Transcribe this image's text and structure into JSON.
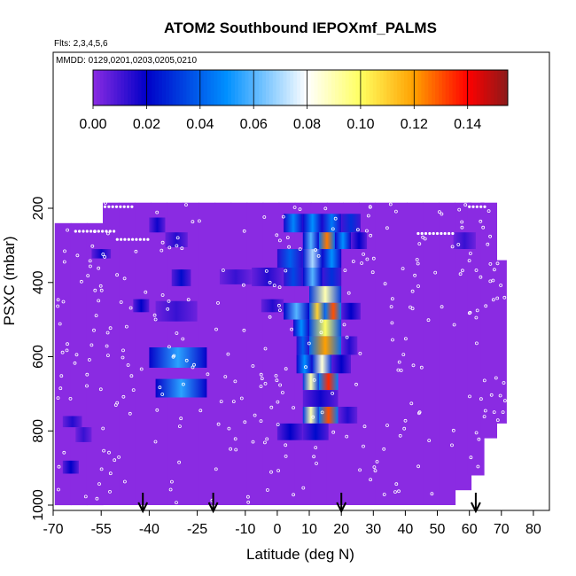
{
  "chart_data": {
    "type": "heatmap",
    "title": "ATOM2 Southbound IEPOXmf_PALMS",
    "flights_label": "Flts: 2,3,4,5,6",
    "dates_label": "MMDD: 0129,0201,0203,0205,0210",
    "xlabel": "Latitude (deg N)",
    "ylabel": "PSXC (mbar)",
    "xlim": [
      -70,
      85
    ],
    "ylim": [
      1000,
      0
    ],
    "x_ticks": [
      -70,
      -55,
      -40,
      -25,
      -10,
      0,
      10,
      20,
      30,
      40,
      50,
      60,
      70,
      80
    ],
    "x_tick_labels": [
      "-70",
      "-55",
      "-40",
      "-25",
      "-10",
      "0",
      "10",
      "20",
      "30",
      "40",
      "50",
      "60",
      "70",
      "80"
    ],
    "y_ticks": [
      200,
      400,
      600,
      800,
      1000
    ],
    "y_tick_labels": [
      "200",
      "400",
      "600",
      "800",
      "1000"
    ],
    "colorbar": {
      "min": 0.0,
      "max": 0.155,
      "ticks": [
        0.0,
        0.02,
        0.04,
        0.06,
        0.08,
        0.1,
        0.12,
        0.14
      ],
      "tick_labels": [
        "0.00",
        "0.02",
        "0.04",
        "0.06",
        "0.08",
        "0.10",
        "0.12",
        "0.14"
      ],
      "colors": [
        "#8a2be2",
        "#0000c8",
        "#0090ff",
        "#ffffff",
        "#ffff60",
        "#ffa000",
        "#ff0000",
        "#8b1a1a"
      ]
    },
    "background_color": "#8a2be2",
    "arrow_latitudes": [
      -42,
      -20,
      20,
      62
    ],
    "columns": [
      {
        "lat": -67,
        "p_top": 240,
        "p_bot": 1000
      },
      {
        "lat": -62,
        "p_top": 240,
        "p_bot": 1000
      },
      {
        "lat": -57,
        "p_top": 240,
        "p_bot": 1000
      },
      {
        "lat": -52,
        "p_top": 185,
        "p_bot": 1000
      },
      {
        "lat": -47,
        "p_top": 185,
        "p_bot": 1000
      },
      {
        "lat": -42,
        "p_top": 185,
        "p_bot": 1000
      },
      {
        "lat": -37,
        "p_top": 185,
        "p_bot": 1000
      },
      {
        "lat": -32,
        "p_top": 185,
        "p_bot": 1000
      },
      {
        "lat": -27,
        "p_top": 185,
        "p_bot": 1000
      },
      {
        "lat": -22,
        "p_top": 185,
        "p_bot": 1000
      },
      {
        "lat": -17,
        "p_top": 185,
        "p_bot": 1000
      },
      {
        "lat": -12,
        "p_top": 185,
        "p_bot": 1000
      },
      {
        "lat": -7,
        "p_top": 185,
        "p_bot": 1000
      },
      {
        "lat": -2,
        "p_top": 185,
        "p_bot": 1000
      },
      {
        "lat": 3,
        "p_top": 185,
        "p_bot": 1000
      },
      {
        "lat": 8,
        "p_top": 185,
        "p_bot": 1000
      },
      {
        "lat": 13,
        "p_top": 185,
        "p_bot": 1000
      },
      {
        "lat": 18,
        "p_top": 185,
        "p_bot": 1000
      },
      {
        "lat": 23,
        "p_top": 185,
        "p_bot": 1000
      },
      {
        "lat": 28,
        "p_top": 185,
        "p_bot": 1000
      },
      {
        "lat": 33,
        "p_top": 185,
        "p_bot": 1000
      },
      {
        "lat": 38,
        "p_top": 185,
        "p_bot": 1000
      },
      {
        "lat": 43,
        "p_top": 185,
        "p_bot": 1000
      },
      {
        "lat": 48,
        "p_top": 185,
        "p_bot": 1000
      },
      {
        "lat": 53,
        "p_top": 185,
        "p_bot": 1000
      },
      {
        "lat": 58,
        "p_top": 185,
        "p_bot": 960
      },
      {
        "lat": 62,
        "p_top": 185,
        "p_bot": 920
      },
      {
        "lat": 66,
        "p_top": 185,
        "p_bot": 820
      },
      {
        "lat": 69,
        "p_top": 340,
        "p_bot": 780
      }
    ],
    "cells": [
      {
        "lat0": -67,
        "lat1": -62,
        "p0": 880,
        "p1": 915,
        "value": 0.02
      },
      {
        "lat0": -67,
        "lat1": -61,
        "p0": 760,
        "p1": 790,
        "value": 0.015
      },
      {
        "lat0": -63,
        "lat1": -58,
        "p0": 790,
        "p1": 830,
        "value": 0.012
      },
      {
        "lat0": -58,
        "lat1": -52,
        "p0": 310,
        "p1": 335,
        "value": 0.018
      },
      {
        "lat0": -45,
        "lat1": -40,
        "p0": 445,
        "p1": 480,
        "value": 0.02
      },
      {
        "lat0": -40,
        "lat1": -35,
        "p0": 225,
        "p1": 265,
        "value": 0.018
      },
      {
        "lat0": -35,
        "lat1": -28,
        "p0": 265,
        "p1": 305,
        "value": 0.015
      },
      {
        "lat0": -33,
        "lat1": -27,
        "p0": 365,
        "p1": 410,
        "value": 0.022
      },
      {
        "lat0": -38,
        "lat1": -25,
        "p0": 450,
        "p1": 505,
        "value": 0.012
      },
      {
        "lat0": -40,
        "lat1": -22,
        "p0": 575,
        "p1": 630,
        "value": 0.055
      },
      {
        "lat0": -38,
        "lat1": -22,
        "p0": 660,
        "p1": 710,
        "value": 0.055
      },
      {
        "lat0": -18,
        "lat1": -8,
        "p0": 365,
        "p1": 405,
        "value": 0.012
      },
      {
        "lat0": -5,
        "lat1": 2,
        "p0": 445,
        "p1": 480,
        "value": 0.015
      },
      {
        "lat0": 2,
        "lat1": 8,
        "p0": 215,
        "p1": 265,
        "value": 0.048
      },
      {
        "lat0": 8,
        "lat1": 14,
        "p0": 215,
        "p1": 265,
        "value": 0.05
      },
      {
        "lat0": 14,
        "lat1": 20,
        "p0": 215,
        "p1": 265,
        "value": 0.045
      },
      {
        "lat0": 20,
        "lat1": 26,
        "p0": 215,
        "p1": 265,
        "value": 0.03
      },
      {
        "lat0": 8,
        "lat1": 13,
        "p0": 265,
        "p1": 310,
        "value": 0.06
      },
      {
        "lat0": 13,
        "lat1": 18,
        "p0": 265,
        "p1": 310,
        "value": 0.125
      },
      {
        "lat0": 18,
        "lat1": 23,
        "p0": 265,
        "p1": 310,
        "value": 0.05
      },
      {
        "lat0": 23,
        "lat1": 28,
        "p0": 265,
        "p1": 310,
        "value": 0.02
      },
      {
        "lat0": 55,
        "lat1": 62,
        "p0": 265,
        "p1": 310,
        "value": 0.012
      },
      {
        "lat0": 0,
        "lat1": 8,
        "p0": 310,
        "p1": 360,
        "value": 0.04
      },
      {
        "lat0": 8,
        "lat1": 14,
        "p0": 310,
        "p1": 360,
        "value": 0.07
      },
      {
        "lat0": 14,
        "lat1": 20,
        "p0": 310,
        "p1": 360,
        "value": 0.05
      },
      {
        "lat0": -8,
        "lat1": 2,
        "p0": 360,
        "p1": 410,
        "value": 0.015
      },
      {
        "lat0": 2,
        "lat1": 8,
        "p0": 360,
        "p1": 410,
        "value": 0.035
      },
      {
        "lat0": 8,
        "lat1": 14,
        "p0": 360,
        "p1": 410,
        "value": 0.06
      },
      {
        "lat0": 14,
        "lat1": 20,
        "p0": 360,
        "p1": 410,
        "value": 0.03
      },
      {
        "lat0": 10,
        "lat1": 20,
        "p0": 410,
        "p1": 455,
        "value": 0.09
      },
      {
        "lat0": 2,
        "lat1": 10,
        "p0": 455,
        "p1": 500,
        "value": 0.06
      },
      {
        "lat0": 10,
        "lat1": 15,
        "p0": 455,
        "p1": 500,
        "value": 0.11
      },
      {
        "lat0": 15,
        "lat1": 20,
        "p0": 455,
        "p1": 500,
        "value": 0.13
      },
      {
        "lat0": 20,
        "lat1": 26,
        "p0": 455,
        "p1": 500,
        "value": 0.02
      },
      {
        "lat0": 5,
        "lat1": 10,
        "p0": 500,
        "p1": 545,
        "value": 0.05
      },
      {
        "lat0": 10,
        "lat1": 20,
        "p0": 500,
        "p1": 545,
        "value": 0.1
      },
      {
        "lat0": 6,
        "lat1": 10,
        "p0": 545,
        "p1": 595,
        "value": 0.04
      },
      {
        "lat0": 10,
        "lat1": 20,
        "p0": 545,
        "p1": 595,
        "value": 0.12
      },
      {
        "lat0": 20,
        "lat1": 25,
        "p0": 545,
        "p1": 595,
        "value": 0.015
      },
      {
        "lat0": 6,
        "lat1": 11,
        "p0": 595,
        "p1": 645,
        "value": 0.05
      },
      {
        "lat0": 11,
        "lat1": 17,
        "p0": 595,
        "p1": 645,
        "value": 0.085
      },
      {
        "lat0": 17,
        "lat1": 23,
        "p0": 595,
        "p1": 645,
        "value": 0.02
      },
      {
        "lat0": 8,
        "lat1": 13,
        "p0": 645,
        "p1": 690,
        "value": 0.09
      },
      {
        "lat0": 13,
        "lat1": 19,
        "p0": 645,
        "p1": 690,
        "value": 0.135
      },
      {
        "lat0": 8,
        "lat1": 19,
        "p0": 690,
        "p1": 735,
        "value": 0.018
      },
      {
        "lat0": 8,
        "lat1": 13,
        "p0": 735,
        "p1": 780,
        "value": 0.09
      },
      {
        "lat0": 13,
        "lat1": 19,
        "p0": 735,
        "p1": 780,
        "value": 0.13
      },
      {
        "lat0": 19,
        "lat1": 25,
        "p0": 735,
        "p1": 780,
        "value": 0.015
      },
      {
        "lat0": 0,
        "lat1": 8,
        "p0": 780,
        "p1": 825,
        "value": 0.02
      },
      {
        "lat0": 8,
        "lat1": 16,
        "p0": 780,
        "p1": 825,
        "value": 0.022
      }
    ]
  }
}
